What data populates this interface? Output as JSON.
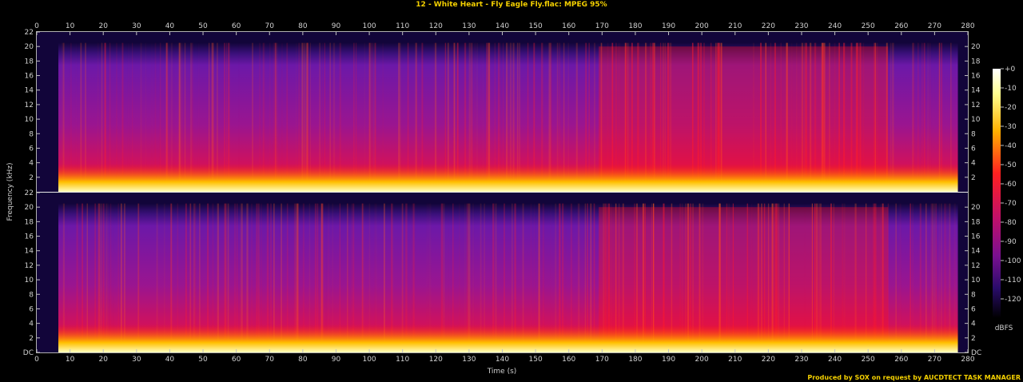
{
  "title": "12 - White Heart - Fly Eagle Fly.flac: MPEG 95%",
  "footer": "Produced by SOX on request by AUCDTECT TASK MANAGER",
  "chart_data": {
    "type": "heatmap",
    "title": "12 - White Heart - Fly Eagle Fly.flac: MPEG 95%",
    "xlabel": "Time (s)",
    "ylabel": "Frequency (kHz)",
    "xlim": [
      0,
      280
    ],
    "ylim": [
      0,
      22
    ],
    "x_ticks": [
      0,
      10,
      20,
      30,
      40,
      50,
      60,
      70,
      80,
      90,
      100,
      110,
      120,
      130,
      140,
      150,
      160,
      170,
      180,
      190,
      200,
      210,
      220,
      230,
      240,
      250,
      260,
      270,
      280
    ],
    "y_ticks_left_top": [
      "22",
      "20",
      "18",
      "16",
      "14",
      "12",
      "10",
      "8",
      "6",
      "4",
      "2"
    ],
    "y_ticks_left_bottom": [
      "22",
      "20",
      "18",
      "16",
      "14",
      "12",
      "10",
      "8",
      "6",
      "4",
      "2",
      "DC"
    ],
    "y_ticks_right_top": [
      "20",
      "18",
      "16",
      "14",
      "12",
      "10",
      "8",
      "6",
      "4",
      "2"
    ],
    "y_ticks_right_bottom": [
      "20",
      "18",
      "16",
      "14",
      "12",
      "10",
      "8",
      "6",
      "4",
      "2",
      "DC"
    ],
    "channels": 2,
    "audio_start_s": 6.5,
    "audio_end_s": 277,
    "lowpass_cutoff_khz": 20.5,
    "colorbar": {
      "label": "dBFS",
      "ticks": [
        "+0",
        "-10",
        "-20",
        "-30",
        "-40",
        "-50",
        "-60",
        "-70",
        "-80",
        "-90",
        "-100",
        "-110",
        "-120"
      ],
      "range": [
        -120,
        0
      ]
    },
    "colors": {
      "loud": "#ffffe0",
      "high": "#ffd000",
      "mid": "#ff1a1a",
      "low": "#800080",
      "quiet": "#1a0050",
      "silent": "#000000"
    }
  }
}
